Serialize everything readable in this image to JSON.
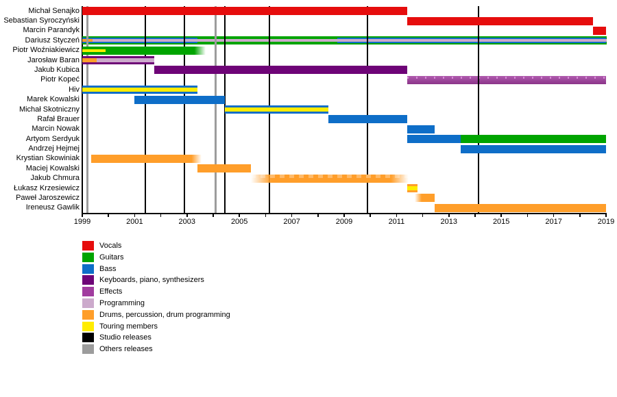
{
  "chart_data": {
    "type": "timeline",
    "x_axis": {
      "start": 1999,
      "end": 2019,
      "label_step": 2,
      "minor_tick_step": 1,
      "tick_labels": [
        "1999",
        "2001",
        "2003",
        "2005",
        "2007",
        "2009",
        "2011",
        "2013",
        "2015",
        "2017",
        "2019"
      ]
    },
    "colors": {
      "vocals": "#E60D0D",
      "guitars": "#00A400",
      "bass": "#0E6EC8",
      "keyboards": "#6E0477",
      "effects": "#A13C9F",
      "programming": "#CCAACC",
      "drums": "#FF9E2A",
      "touring": "#FFEC00",
      "studio": "#000000",
      "others": "#9C9C9C"
    },
    "legend": [
      {
        "key": "vocals",
        "label": "Vocals"
      },
      {
        "key": "guitars",
        "label": "Guitars"
      },
      {
        "key": "bass",
        "label": "Bass"
      },
      {
        "key": "keyboards",
        "label": "Keyboards, piano, synthesizers"
      },
      {
        "key": "effects",
        "label": "Effects"
      },
      {
        "key": "programming",
        "label": "Programming"
      },
      {
        "key": "drums",
        "label": "Drums, percussion, drum programming"
      },
      {
        "key": "touring",
        "label": "Touring members"
      },
      {
        "key": "studio",
        "label": "Studio releases"
      },
      {
        "key": "others",
        "label": "Others releases"
      }
    ],
    "members": [
      {
        "name": "Michał Senajko",
        "bars": [
          {
            "role": "vocals",
            "from": 1999,
            "to": 2011.4
          }
        ]
      },
      {
        "name": "Sebastian Syroczyński",
        "bars": [
          {
            "role": "vocals",
            "from": 2011.4,
            "to": 2018.5
          }
        ]
      },
      {
        "name": "Marcin Parandyk",
        "bars": [
          {
            "role": "vocals",
            "from": 2018.5,
            "to": 2019.05
          }
        ]
      },
      {
        "name": "Dariusz Styczeń",
        "under": true,
        "bars": [
          {
            "role": "guitars",
            "from": 1999,
            "to": 2019.05,
            "h": 12
          },
          {
            "role": "bass",
            "from": 1999,
            "to": 2003.4,
            "h": 8
          },
          {
            "role": "bass",
            "from": 2008.75,
            "to": 2019.05,
            "h": 8
          },
          {
            "role": "programming",
            "from": 1999,
            "to": 2019.05,
            "h": 4
          },
          {
            "role": "drums",
            "from": 1999,
            "to": 1999.4,
            "h": 4
          }
        ]
      },
      {
        "name": "Piotr Woźniakiewicz",
        "bars": [
          {
            "role": "guitars",
            "from": 1999,
            "to": 2003.7,
            "fade": "right",
            "fr": 16
          },
          {
            "role": "touring",
            "from": 1999,
            "to": 1999.9,
            "h": 4
          }
        ]
      },
      {
        "name": "Jarosław Baran",
        "bars": [
          {
            "role": "keyboards",
            "from": 1999,
            "to": 2001.75
          },
          {
            "role": "programming",
            "from": 1999,
            "to": 2001.75,
            "h": 6
          },
          {
            "role": "drums",
            "from": 1999,
            "to": 1999.55,
            "h": 6
          }
        ]
      },
      {
        "name": "Jakub Kubica",
        "bars": [
          {
            "role": "keyboards",
            "from": 2001.75,
            "to": 2011.4
          }
        ]
      },
      {
        "name": "Piotr Kopeć",
        "under": true,
        "bars": [
          {
            "role": "effects",
            "from": 2011.4,
            "to": 2019.05,
            "texture": "sheen"
          }
        ]
      },
      {
        "name": "Hiv",
        "bars": [
          {
            "role": "bass",
            "from": 1999,
            "to": 2003.4
          },
          {
            "role": "touring",
            "from": 1999,
            "to": 2003.4,
            "h": 6
          }
        ]
      },
      {
        "name": "Marek Kowalski",
        "bars": [
          {
            "role": "bass",
            "from": 2001.0,
            "to": 2004.45
          }
        ]
      },
      {
        "name": "Michał Skotniczny",
        "bars": [
          {
            "role": "bass",
            "from": 2004.45,
            "to": 2008.4
          },
          {
            "role": "touring",
            "from": 2004.45,
            "to": 2008.4,
            "h": 6
          }
        ]
      },
      {
        "name": "Rafał Brauer",
        "bars": [
          {
            "role": "bass",
            "from": 2008.4,
            "to": 2011.4
          }
        ]
      },
      {
        "name": "Marcin Nowak",
        "bars": [
          {
            "role": "bass",
            "from": 2011.4,
            "to": 2012.45
          }
        ]
      },
      {
        "name": "Artyom Serdyuk",
        "bars": [
          {
            "role": "bass",
            "from": 2011.4,
            "to": 2013.45
          },
          {
            "role": "guitars",
            "from": 2013.45,
            "to": 2019.05
          }
        ]
      },
      {
        "name": "Andrzej Hejmej",
        "bars": [
          {
            "role": "bass",
            "from": 2013.45,
            "to": 2019.05
          }
        ]
      },
      {
        "name": "Krystian Skowiniak",
        "bars": [
          {
            "role": "drums",
            "from": 1999.35,
            "to": 2003.55,
            "fade": "right",
            "fr": 14
          }
        ]
      },
      {
        "name": "Maciej Kowalski",
        "bars": [
          {
            "role": "drums",
            "from": 2003.4,
            "to": 2005.45
          }
        ]
      },
      {
        "name": "Jakub Chmura",
        "bars": [
          {
            "role": "drums",
            "from": 2005.45,
            "to": 2011.45,
            "fade": "both",
            "fl": 30,
            "fr": 25,
            "texture": "dither"
          }
        ]
      },
      {
        "name": "Łukasz Krzesiewicz",
        "bars": [
          {
            "role": "drums",
            "from": 2011.4,
            "to": 2011.8
          },
          {
            "role": "touring",
            "from": 2011.4,
            "to": 2011.8,
            "h": 6
          }
        ]
      },
      {
        "name": "Paweł Jaroszewicz",
        "bars": [
          {
            "role": "drums",
            "from": 2011.7,
            "to": 2012.45,
            "fade": "left",
            "fl": 10
          }
        ]
      },
      {
        "name": "Ireneusz Gawlik",
        "bars": [
          {
            "role": "drums",
            "from": 2012.45,
            "to": 2019.05
          }
        ]
      }
    ],
    "releases": [
      {
        "type": "others",
        "year": 1999.2
      },
      {
        "type": "studio",
        "year": 2001.42
      },
      {
        "type": "studio",
        "year": 2002.9
      },
      {
        "type": "others",
        "year": 2004.1
      },
      {
        "type": "studio",
        "year": 2004.45
      },
      {
        "type": "studio",
        "year": 2006.15
      },
      {
        "type": "studio",
        "year": 2009.9
      },
      {
        "type": "studio",
        "year": 2014.12
      }
    ]
  }
}
